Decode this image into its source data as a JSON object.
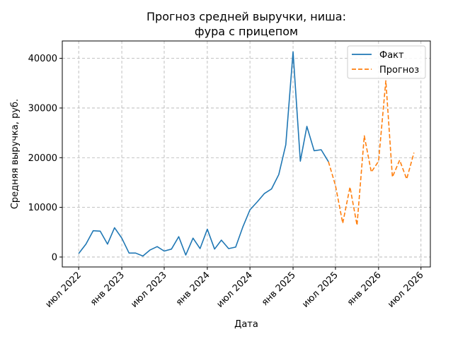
{
  "chart_data": {
    "type": "line",
    "title_lines": [
      "Прогноз средней выручки, ниша:",
      "фура с прицепом"
    ],
    "xlabel": "Дата",
    "ylabel": "Средняя выручка, руб.",
    "x_ticks": [
      {
        "date": "2022-07",
        "label": "июл 2022"
      },
      {
        "date": "2023-01",
        "label": "янв 2023"
      },
      {
        "date": "2023-07",
        "label": "июл 2023"
      },
      {
        "date": "2024-01",
        "label": "янв 2024"
      },
      {
        "date": "2024-07",
        "label": "июл 2024"
      },
      {
        "date": "2025-01",
        "label": "янв 2025"
      },
      {
        "date": "2025-07",
        "label": "июл 2025"
      },
      {
        "date": "2026-01",
        "label": "янв 2026"
      },
      {
        "date": "2026-07",
        "label": "июл 2026"
      }
    ],
    "y_ticks": [
      0,
      10000,
      20000,
      30000,
      40000
    ],
    "xlim": [
      "2022-04-22",
      "2026-08-10"
    ],
    "ylim": [
      -2000,
      43500
    ],
    "grid": true,
    "legend_position": "top-right",
    "series": [
      {
        "name": "Факт",
        "color": "#1f77b4",
        "style": "solid",
        "points": [
          {
            "date": "2022-07",
            "value": 700
          },
          {
            "date": "2022-08",
            "value": 2600
          },
          {
            "date": "2022-09",
            "value": 5300
          },
          {
            "date": "2022-10",
            "value": 5200
          },
          {
            "date": "2022-11",
            "value": 2600
          },
          {
            "date": "2022-12",
            "value": 5900
          },
          {
            "date": "2023-01",
            "value": 3800
          },
          {
            "date": "2023-02",
            "value": 800
          },
          {
            "date": "2023-03",
            "value": 800
          },
          {
            "date": "2023-04",
            "value": 200
          },
          {
            "date": "2023-05",
            "value": 1400
          },
          {
            "date": "2023-06",
            "value": 2100
          },
          {
            "date": "2023-07",
            "value": 1200
          },
          {
            "date": "2023-08",
            "value": 1600
          },
          {
            "date": "2023-09",
            "value": 4100
          },
          {
            "date": "2023-10",
            "value": 400
          },
          {
            "date": "2023-11",
            "value": 3800
          },
          {
            "date": "2023-12",
            "value": 1700
          },
          {
            "date": "2024-01",
            "value": 5600
          },
          {
            "date": "2024-02",
            "value": 1600
          },
          {
            "date": "2024-03",
            "value": 3400
          },
          {
            "date": "2024-04",
            "value": 1700
          },
          {
            "date": "2024-05",
            "value": 2000
          },
          {
            "date": "2024-06",
            "value": 6100
          },
          {
            "date": "2024-07",
            "value": 9500
          },
          {
            "date": "2024-08",
            "value": 11100
          },
          {
            "date": "2024-09",
            "value": 12800
          },
          {
            "date": "2024-10",
            "value": 13700
          },
          {
            "date": "2024-11",
            "value": 16600
          },
          {
            "date": "2024-12",
            "value": 22600
          },
          {
            "date": "2025-01",
            "value": 41300
          },
          {
            "date": "2025-02",
            "value": 19300
          },
          {
            "date": "2025-03",
            "value": 26300
          },
          {
            "date": "2025-04",
            "value": 21400
          },
          {
            "date": "2025-05",
            "value": 21600
          },
          {
            "date": "2025-06",
            "value": 19200
          }
        ]
      },
      {
        "name": "Прогноз",
        "color": "#ff7f0e",
        "style": "dashed",
        "points": [
          {
            "date": "2025-06",
            "value": 19200
          },
          {
            "date": "2025-07",
            "value": 14400
          },
          {
            "date": "2025-08",
            "value": 6800
          },
          {
            "date": "2025-09",
            "value": 14100
          },
          {
            "date": "2025-10",
            "value": 6400
          },
          {
            "date": "2025-11",
            "value": 24400
          },
          {
            "date": "2025-12",
            "value": 17100
          },
          {
            "date": "2026-01",
            "value": 19300
          },
          {
            "date": "2026-02",
            "value": 35500
          },
          {
            "date": "2026-03",
            "value": 16100
          },
          {
            "date": "2026-04",
            "value": 19500
          },
          {
            "date": "2026-05",
            "value": 15700
          },
          {
            "date": "2026-06",
            "value": 21000
          }
        ]
      }
    ]
  }
}
